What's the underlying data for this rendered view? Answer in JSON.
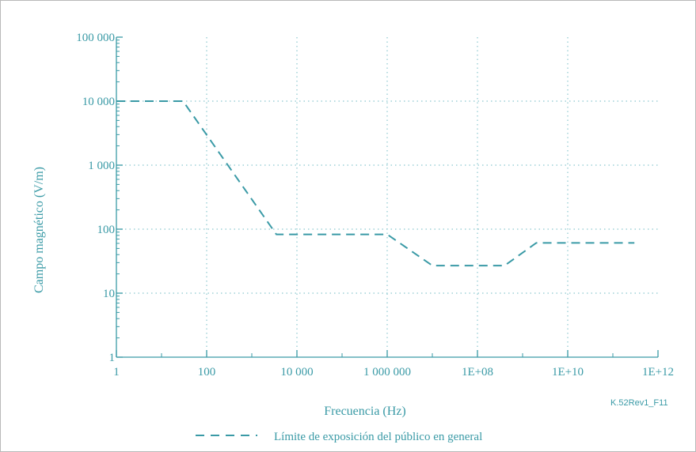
{
  "chart_data": {
    "type": "line",
    "xlabel": "Frecuencia (Hz)",
    "ylabel": "Campo magnético (V/m)",
    "x_scale": "log",
    "y_scale": "log",
    "xlim": [
      1,
      1000000000000.0
    ],
    "ylim": [
      1,
      100000
    ],
    "x_ticks": [
      {
        "value": 1,
        "label": "1"
      },
      {
        "value": 100,
        "label": "100"
      },
      {
        "value": 10000,
        "label": "10 000"
      },
      {
        "value": 1000000,
        "label": "1 000 000"
      },
      {
        "value": 100000000,
        "label": "1E+08"
      },
      {
        "value": 10000000000,
        "label": "1E+10"
      },
      {
        "value": 1000000000000,
        "label": "1E+12"
      }
    ],
    "y_ticks": [
      {
        "value": 1,
        "label": "1"
      },
      {
        "value": 10,
        "label": "10"
      },
      {
        "value": 100,
        "label": "100"
      },
      {
        "value": 1000,
        "label": "1 000"
      },
      {
        "value": 10000,
        "label": "10 000"
      },
      {
        "value": 100000,
        "label": "100 000"
      }
    ],
    "grid": true,
    "legend_position": "bottom",
    "series": [
      {
        "name": "Límite de exposición del público en general",
        "color": "#3a9aa6",
        "line_style": "dashed",
        "x": [
          1,
          30,
          3500,
          1000000,
          10000000,
          400000000,
          2000000000,
          300000000000
        ],
        "y": [
          10000,
          10000,
          83,
          83,
          27,
          27,
          61,
          61
        ]
      }
    ],
    "code_label": "K.52Rev1_F11"
  },
  "colors": {
    "accent": "#3a9aa6",
    "grid": "#8cc7cf",
    "frame": "#b9b9b9"
  }
}
